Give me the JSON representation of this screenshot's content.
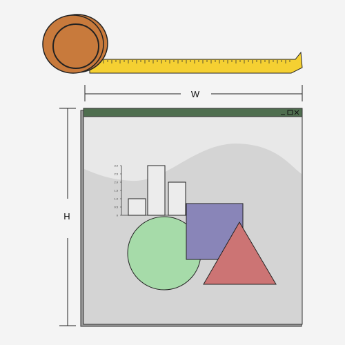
{
  "dimensions": {
    "width_label": "W",
    "height_label": "H"
  },
  "window": {
    "titlebar_color": "#4f6e4f",
    "controls": [
      "minimize-icon",
      "maximize-icon",
      "close-icon"
    ]
  },
  "illustration": {
    "chart": {
      "y_ticks": [
        "3.0",
        "2.5",
        "2.0",
        "1.5",
        "1.0",
        "0.5",
        "0"
      ],
      "values": [
        1.0,
        3.0,
        2.0
      ],
      "ylim": [
        0,
        3
      ]
    },
    "shapes": [
      {
        "kind": "circle",
        "color": "#a6dba9"
      },
      {
        "kind": "square",
        "color": "#8985b8"
      },
      {
        "kind": "triangle",
        "color": "#cc7474"
      }
    ]
  },
  "tape_measure": {
    "case_color": "#c87a3c",
    "tape_color": "#f5d032"
  }
}
